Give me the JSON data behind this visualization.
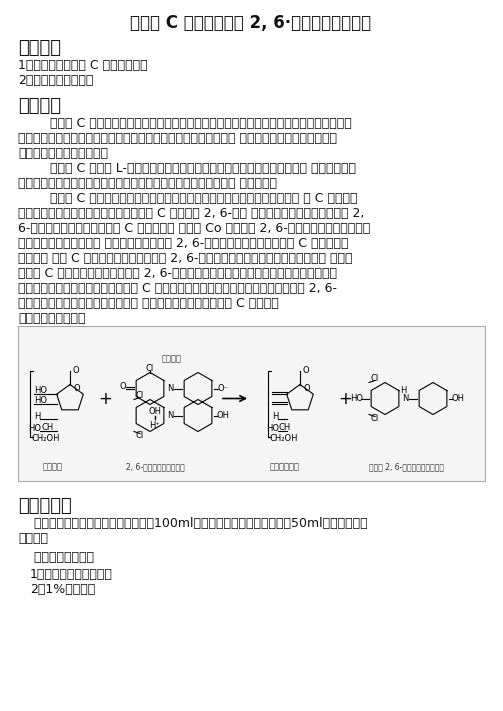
{
  "title": "维生素 C 的定量测定一 2, 6·二氯酚靛酚滴定法",
  "section1_title": "实验目的",
  "section1_items": [
    "1．学习定量维生素 C 的原理和方法",
    "2．掌握微量滴定技术"
  ],
  "section2_title": "实验原理",
  "section2_para1_lines": [
    "        维生素 C 是人类营养中最重要的维生素之一。缺乏时会产生坏血病，因此，又称为抗坏血",
    "酸。它对物质代谢的调节具有重要的作用，近年来发现它还能增强 机体对肿瘤的抵抗力，并具有",
    "对化学致癌物的阻断作用。"
  ],
  "section2_para2_lines": [
    "        维生素 C 是具有 L-系糖构型的不饱和多羟基化合物，属于水溶性维生素。 它分布很广，",
    "植物的绿色部分及许多水果（柑芙、草莓、山植、辣椒等）的含量 都很丰富。"
  ],
  "section2_para3_lines": [
    "        维生素 C 具有很强的还原性，在碱性溶液中加热并有氧化剂存在时，维生 素 C 易被氧化",
    "而破坏。在中性和微酸性环境中，维生素 C 能将染料 2, 6-二氯 酚靛酚还原成无色的还原型的 2,",
    "6-二氯酚靛酚，同时将维生素 C 氧化成脱氢 维生素 Co 氧化型的 2, 6-二氯酚靛酚在酸性溶液中",
    "呈现红色，在中性或碱性 溶液中呈兰色。当用 2, 6-二氯酚靛酚滴定含有维生素 C 的酸性溶液",
    "时，在维 生素 C 尚未全被氧化时，滴下的 2, 6-二氯酚靛酚立即被还原成无色。但当溶 液中的",
    "维生素 C 刚好全被氧化时，滴下的 2, 6-二氯酚靛酚立即溶液呈红色，所以，当溶液由无色",
    "变为微红色时即表示溶液中的维生素 C 刚好全被氧化，此时即为滴定终点。从滴定时 2, 6-",
    "二氯酚靛酚溶液的消耗量，可以计算 出被检物质中还原型维生素 C 的含量。"
  ],
  "section2_reaction": "其化学反应式如下：",
  "section3_title": "仪器、试剂",
  "section3_para1_lines": [
    "    （一）仪器：研钵、天平、容量瓶（100ml）、量筒、移液管、锥形瓶（50ml）、微量滴定",
    "管、漏斗"
  ],
  "section3_sub": "    （二）材料、试剂",
  "section3_items": [
    "1、新鲜蔬菜或新鲜水果",
    "2、1%草酸溶液"
  ],
  "bg_color": "#ffffff",
  "text_color": "#333333",
  "title_fontsize": 12,
  "body_fontsize": 9,
  "section_fontsize": 13
}
